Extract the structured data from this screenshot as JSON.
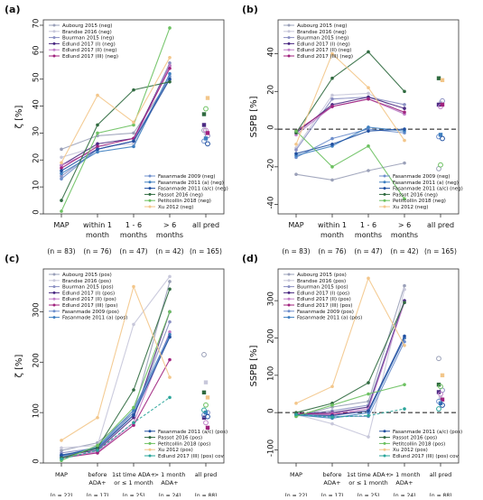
{
  "panels": [
    {
      "label": "(a)",
      "ylabel": "ζ [%]",
      "ylim": [
        0,
        72
      ],
      "yticks": [
        0,
        10,
        20,
        30,
        40,
        50,
        60,
        70
      ],
      "zero_line": false,
      "categories": [
        "MAP",
        "within 1\nmonth",
        "1 - 6\nmonths",
        "> 6\nmonths",
        "all pred"
      ],
      "counts": [
        "(n = 83)",
        "(n = 76)",
        "(n = 47)",
        "(n = 42)",
        "(n = 165)"
      ],
      "legend_top": [
        "Aubourg 2015 (neg)",
        "Brandse 2016 (neg)",
        "Buurman 2015 (neg)",
        "Edlund 2017 (I) (neg)",
        "Edlund 2017 (II) (neg)",
        "Edlund 2017 (III) (neg)"
      ],
      "legend_bottom": [
        "Fasanmade 2009 (neg)",
        "Fasanmade 2011 (a) (neg)",
        "Fasanmade 2011 (a/c) (neg)",
        "Passot 2016 (neg)",
        "Petitcollin 2018 (neg)",
        "Xu 2012 (neg)"
      ]
    },
    {
      "label": "(b)",
      "ylabel": "SSPB [%]",
      "ylim": [
        -45,
        58
      ],
      "yticks": [
        -40,
        -20,
        0,
        20,
        40
      ],
      "zero_line": true,
      "categories": [
        "MAP",
        "within 1\nmonth",
        "1 - 6\nmonths",
        "> 6\nmonths",
        "all pred"
      ],
      "counts": [
        "(n = 83)",
        "(n = 76)",
        "(n = 47)",
        "(n = 42)",
        "(n = 165)"
      ],
      "legend_top": [
        "Aubourg 2015 (neg)",
        "Brandse 2016 (neg)",
        "Buurman 2015 (neg)",
        "Edlund 2017 (I) (neg)",
        "Edlund 2017 (II) (neg)",
        "Edlund 2017 (III) (neg)"
      ],
      "legend_bottom": [
        "Fasanmade 2009 (neg)",
        "Fasanmade 2011 (a) (neg)",
        "Fasanmade 2011 (a/c) (neg)",
        "Passot 2016 (neg)",
        "Petitcollin 2018 (neg)",
        "Xu 2012 (neg)"
      ]
    },
    {
      "label": "(c)",
      "ylabel": "ζ [%]",
      "ylim": [
        0,
        385
      ],
      "yticks": [
        0,
        100,
        200,
        300
      ],
      "zero_line": false,
      "categories": [
        "MAP",
        "before\nADA+",
        "1st time ADA+\nor ≤ 1 month",
        "> 1 month\nADA+",
        "all pred"
      ],
      "counts": [
        "(n = 22)",
        "(n = 17)",
        "(n = 25)",
        "(n = 24)",
        "(n = 88)"
      ],
      "legend_top": [
        "Aubourg 2015 (pos)",
        "Brandse 2016 (pos)",
        "Buurman 2015 (pos)",
        "Edlund 2017 (I) (pos)",
        "Edlund 2017 (II) (pos)",
        "Edlund 2017 (III) (pos)",
        "Fasanmade 2009 (pos)",
        "Fasanmade 2011 (a) (pos)"
      ],
      "legend_bottom": [
        "Fasanmade 2011 (a/c) (pos)",
        "Passot 2016 (pos)",
        "Petitcollin 2018 (pos)",
        "Xu 2012 (pos)",
        "Edlund 2017 (III) (pos) cov"
      ]
    },
    {
      "label": "(d)",
      "ylabel": "SSPB [%]",
      "ylim": [
        -135,
        385
      ],
      "yticks": [
        -100,
        0,
        100,
        200,
        300
      ],
      "zero_line": true,
      "categories": [
        "MAP",
        "before\nADA+",
        "1st time ADA+\nor ≤ 1 month",
        "> 1 month\nADA+",
        "all pred"
      ],
      "counts": [
        "(n = 22)",
        "(n = 17)",
        "(n = 25)",
        "(n = 24)",
        "(n = 88)"
      ],
      "legend_top": [
        "Aubourg 2015 (pos)",
        "Brandse 2016 (pos)",
        "Buurman 2015 (pos)",
        "Edlund 2017 (I) (pos)",
        "Edlund 2017 (II) (pos)",
        "Edlund 2017 (III) (pos)",
        "Fasanmade 2009 (pos)",
        "Fasanmade 2011 (a) (pos)"
      ],
      "legend_bottom": [
        "Fasanmade 2011 (a/c) (pos)",
        "Passot 2016 (pos)",
        "Petitcollin 2018 (pos)",
        "Xu 2012 (pos)",
        "Edlund 2017 (III) (pos) cov"
      ]
    }
  ],
  "chart_data": [
    {
      "type": "line",
      "panel": "(a)",
      "x": [
        "MAP",
        "within 1 month",
        "1 - 6 months",
        "> 6 months",
        "all pred"
      ],
      "ylabel": "ζ [%]",
      "ylim": [
        0,
        72
      ],
      "series": [
        {
          "name": "Aubourg 2015 (neg)",
          "color": "#9aa0b8",
          "values": [
            24,
            29,
            30,
            50,
            31
          ]
        },
        {
          "name": "Brandse 2016 (neg)",
          "color": "#c7c7da",
          "values": [
            21,
            25,
            26,
            50,
            30
          ]
        },
        {
          "name": "Buurman 2015 (neg)",
          "color": "#8a8fc2",
          "values": [
            14,
            24,
            27,
            56,
            29
          ]
        },
        {
          "name": "Edlund 2017 (I) (neg)",
          "color": "#4b2a82",
          "values": [
            18,
            26,
            28,
            55,
            33
          ]
        },
        {
          "name": "Edlund 2017 (II) (neg)",
          "color": "#c07ec8",
          "values": [
            18,
            24,
            27,
            55,
            31
          ]
        },
        {
          "name": "Edlund 2017 (III) (neg)",
          "color": "#a0227e",
          "values": [
            17,
            25,
            28,
            54,
            30
          ]
        },
        {
          "name": "Fasanmade 2009 (neg)",
          "color": "#6e8fcc",
          "values": [
            13,
            24,
            27,
            51,
            27
          ]
        },
        {
          "name": "Fasanmade 2011 (a) (neg)",
          "color": "#3f7fc0",
          "values": [
            15,
            23,
            25,
            52,
            28
          ]
        },
        {
          "name": "Fasanmade 2011 (a/c) (neg)",
          "color": "#1f4fa0",
          "values": [
            16,
            24,
            27,
            50,
            26
          ]
        },
        {
          "name": "Passot 2016 (neg)",
          "color": "#2f6a3f",
          "values": [
            5,
            33,
            46,
            49,
            37
          ]
        },
        {
          "name": "Petitcollin 2018 (neg)",
          "color": "#6cc160",
          "values": [
            1,
            30,
            33,
            69,
            39
          ]
        },
        {
          "name": "Xu 2012 (neg)",
          "color": "#f3c68a",
          "values": [
            19,
            44,
            34,
            58,
            43
          ]
        }
      ]
    },
    {
      "type": "line",
      "panel": "(b)",
      "x": [
        "MAP",
        "within 1 month",
        "1 - 6 months",
        "> 6 months",
        "all pred"
      ],
      "ylabel": "SSPB [%]",
      "ylim": [
        -45,
        58
      ],
      "series": [
        {
          "name": "Aubourg 2015 (neg)",
          "color": "#9aa0b8",
          "values": [
            -24,
            -27,
            -22,
            -18,
            -21
          ]
        },
        {
          "name": "Brandse 2016 (neg)",
          "color": "#c7c7da",
          "values": [
            -10,
            18,
            19,
            8,
            14
          ]
        },
        {
          "name": "Buurman 2015 (neg)",
          "color": "#8a8fc2",
          "values": [
            -11,
            16,
            17,
            13,
            15
          ]
        },
        {
          "name": "Edlund 2017 (I) (neg)",
          "color": "#4b2a82",
          "values": [
            -2,
            13,
            17,
            11,
            13
          ]
        },
        {
          "name": "Edlund 2017 (II) (neg)",
          "color": "#c07ec8",
          "values": [
            -3,
            12,
            16,
            8,
            12
          ]
        },
        {
          "name": "Edlund 2017 (III) (neg)",
          "color": "#a0227e",
          "values": [
            -1,
            12,
            16,
            9,
            13
          ]
        },
        {
          "name": "Fasanmade 2009 (neg)",
          "color": "#6e8fcc",
          "values": [
            -15,
            -5,
            0,
            -2,
            -4
          ]
        },
        {
          "name": "Fasanmade 2011 (a) (neg)",
          "color": "#3f7fc0",
          "values": [
            -14,
            -9,
            1,
            -1,
            -3
          ]
        },
        {
          "name": "Fasanmade 2011 (a/c) (neg)",
          "color": "#1f4fa0",
          "values": [
            -13,
            -8,
            -1,
            0,
            -5
          ]
        },
        {
          "name": "Passot 2016 (neg)",
          "color": "#2f6a3f",
          "values": [
            -2,
            27,
            41,
            20,
            27
          ]
        },
        {
          "name": "Petitcollin 2018 (neg)",
          "color": "#6cc160",
          "values": [
            -1,
            -20,
            -9,
            -37,
            -19
          ]
        },
        {
          "name": "Xu 2012 (neg)",
          "color": "#f3c68a",
          "values": [
            -8,
            40,
            22,
            -6,
            26
          ]
        }
      ]
    },
    {
      "type": "line",
      "panel": "(c)",
      "x": [
        "MAP",
        "before ADA+",
        "1st time ADA+ or ≤ 1 month",
        "> 1 month ADA+",
        "all pred"
      ],
      "ylabel": "ζ [%]",
      "ylim": [
        0,
        385
      ],
      "series": [
        {
          "name": "Aubourg 2015 (pos)",
          "color": "#9aa0b8",
          "values": [
            25,
            40,
            100,
            360,
            215
          ]
        },
        {
          "name": "Brandse 2016 (pos)",
          "color": "#c7c7da",
          "values": [
            30,
            35,
            275,
            370,
            160
          ]
        },
        {
          "name": "Buurman 2015 (pos)",
          "color": "#8a8fc2",
          "values": [
            20,
            30,
            95,
            280,
            100
          ]
        },
        {
          "name": "Edlund 2017 (I) (pos)",
          "color": "#4b2a82",
          "values": [
            15,
            25,
            90,
            300,
            90
          ]
        },
        {
          "name": "Edlund 2017 (II) (pos)",
          "color": "#c07ec8",
          "values": [
            12,
            22,
            80,
            260,
            80
          ]
        },
        {
          "name": "Edlund 2017 (III) (pos)",
          "color": "#a0227e",
          "values": [
            10,
            20,
            75,
            205,
            70
          ]
        },
        {
          "name": "Fasanmade 2009 (pos)",
          "color": "#6e8fcc",
          "values": [
            12,
            30,
            100,
            250,
            95
          ]
        },
        {
          "name": "Fasanmade 2011 (a) (pos)",
          "color": "#3f7fc0",
          "values": [
            14,
            32,
            105,
            255,
            100
          ]
        },
        {
          "name": "Fasanmade 2011 (a/c) (pos)",
          "color": "#1f4fa0",
          "values": [
            16,
            28,
            95,
            250,
            92
          ]
        },
        {
          "name": "Passot 2016 (pos)",
          "color": "#2f6a3f",
          "values": [
            10,
            30,
            145,
            345,
            140
          ]
        },
        {
          "name": "Petitcollin 2018 (pos)",
          "color": "#6cc160",
          "values": [
            5,
            35,
            110,
            300,
            115
          ]
        },
        {
          "name": "Xu 2012 (pos)",
          "color": "#f3c68a",
          "values": [
            45,
            90,
            350,
            170,
            130
          ]
        },
        {
          "name": "Edlund 2017 (III) (pos) cov",
          "color": "#2aa59a",
          "values": [
            8,
            25,
            80,
            130,
            105
          ]
        }
      ]
    },
    {
      "type": "line",
      "panel": "(d)",
      "x": [
        "MAP",
        "before ADA+",
        "1st time ADA+ or ≤ 1 month",
        "> 1 month ADA+",
        "all pred"
      ],
      "ylabel": "SSPB [%]",
      "ylim": [
        -135,
        385
      ],
      "series": [
        {
          "name": "Aubourg 2015 (pos)",
          "color": "#9aa0b8",
          "values": [
            -10,
            15,
            30,
            340,
            145
          ]
        },
        {
          "name": "Brandse 2016 (pos)",
          "color": "#c7c7da",
          "values": [
            -5,
            -30,
            -65,
            330,
            40
          ]
        },
        {
          "name": "Buurman 2015 (pos)",
          "color": "#8a8fc2",
          "values": [
            -5,
            5,
            20,
            300,
            60
          ]
        },
        {
          "name": "Edlund 2017 (I) (pos)",
          "color": "#4b2a82",
          "values": [
            -3,
            0,
            15,
            300,
            55
          ]
        },
        {
          "name": "Edlund 2017 (II) (pos)",
          "color": "#c07ec8",
          "values": [
            -4,
            -2,
            10,
            295,
            50
          ]
        },
        {
          "name": "Edlund 2017 (III) (pos)",
          "color": "#a0227e",
          "values": [
            -2,
            -5,
            5,
            200,
            35
          ]
        },
        {
          "name": "Fasanmade 2009 (pos)",
          "color": "#6e8fcc",
          "values": [
            -8,
            -10,
            -10,
            190,
            30
          ]
        },
        {
          "name": "Fasanmade 2011 (a) (pos)",
          "color": "#3f7fc0",
          "values": [
            -6,
            -15,
            0,
            200,
            25
          ]
        },
        {
          "name": "Fasanmade 2011 (a/c) (pos)",
          "color": "#1f4fa0",
          "values": [
            -5,
            -8,
            5,
            205,
            20
          ]
        },
        {
          "name": "Passot 2016 (pos)",
          "color": "#2f6a3f",
          "values": [
            0,
            25,
            80,
            295,
            75
          ]
        },
        {
          "name": "Petitcollin 2018 (pos)",
          "color": "#6cc160",
          "values": [
            -10,
            20,
            50,
            75,
            70
          ]
        },
        {
          "name": "Xu 2012 (pos)",
          "color": "#f3c68a",
          "values": [
            25,
            70,
            360,
            180,
            100
          ]
        },
        {
          "name": "Edlund 2017 (III) (pos) cov",
          "color": "#2aa59a",
          "values": [
            -5,
            -12,
            -8,
            10,
            10
          ]
        }
      ]
    }
  ]
}
